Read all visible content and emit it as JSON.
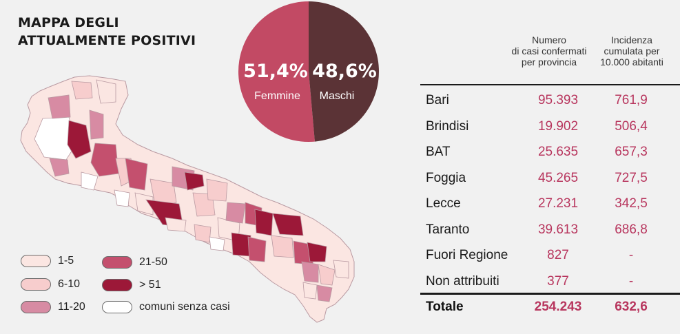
{
  "title": {
    "line1": "MAPPA DEGLI",
    "line2": "ATTUALMENTE POSITIVI"
  },
  "colors": {
    "class_1_5": "#fbe6e2",
    "class_6_10": "#f7cdcd",
    "class_11_20": "#d78ba3",
    "class_21_50": "#c4506e",
    "class_over_51": "#9c1838",
    "no_cases": "#ffffff",
    "female": "#c24a64",
    "male": "#5b3336"
  },
  "legend": [
    {
      "label": "1-5",
      "color_key": "class_1_5"
    },
    {
      "label": "6-10",
      "color_key": "class_6_10"
    },
    {
      "label": "11-20",
      "color_key": "class_11_20"
    },
    {
      "label": "21-50",
      "color_key": "class_21_50"
    },
    {
      "label": "> 51",
      "color_key": "class_over_51"
    },
    {
      "label": "comuni senza casi",
      "color_key": "no_cases"
    }
  ],
  "chart_data": [
    {
      "type": "pie",
      "labels": [
        "Femmine",
        "Maschi"
      ],
      "values": [
        51.4,
        48.6
      ],
      "value_labels": [
        "51,4%",
        "48,6%"
      ],
      "colors": [
        "#c24a64",
        "#5b3336"
      ]
    },
    {
      "type": "table",
      "columns": [
        "",
        "Numero\ndi casi confermati\nper provincia",
        "Incidenza\ncumulata per\n10.000 abitanti"
      ],
      "rows": [
        {
          "name": "Bari",
          "cases": "95.393",
          "incidence": "761,9"
        },
        {
          "name": "Brindisi",
          "cases": "19.902",
          "incidence": "506,4"
        },
        {
          "name": "BAT",
          "cases": "25.635",
          "incidence": "657,3"
        },
        {
          "name": "Foggia",
          "cases": "45.265",
          "incidence": "727,5"
        },
        {
          "name": "Lecce",
          "cases": "27.231",
          "incidence": "342,5"
        },
        {
          "name": "Taranto",
          "cases": "39.613",
          "incidence": "686,8"
        },
        {
          "name": "Fuori Regione",
          "cases": "827",
          "incidence": "-"
        },
        {
          "name": "Non attribuiti",
          "cases": "377",
          "incidence": "-"
        }
      ],
      "total": {
        "name": "Totale",
        "cases": "254.243",
        "incidence": "632,6"
      }
    }
  ]
}
